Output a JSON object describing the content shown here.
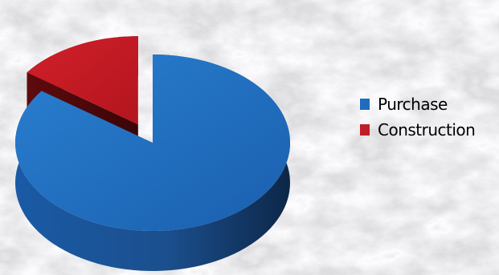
{
  "chart_data": {
    "type": "pie",
    "style": "3d-exploded",
    "title": "",
    "categories": [
      "Purchase",
      "Construction"
    ],
    "values": [
      85,
      15
    ],
    "unit": "percent",
    "colors": [
      "#1f6bbd",
      "#c01c25"
    ],
    "legend": "right",
    "exploded": [
      "Construction"
    ],
    "grid": false
  }
}
